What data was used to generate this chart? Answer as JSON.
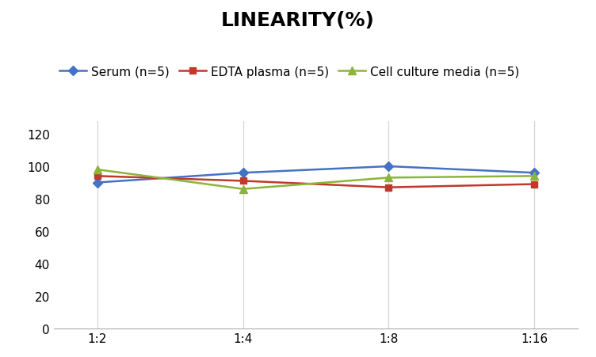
{
  "title": "LINEARITY(%)",
  "x_labels": [
    "1:2",
    "1:4",
    "1:8",
    "1:16"
  ],
  "x_positions": [
    0,
    1,
    2,
    3
  ],
  "series": [
    {
      "label": "Serum (n=5)",
      "values": [
        90,
        96,
        100,
        96
      ],
      "color": "#4472C4",
      "marker": "D",
      "marker_size": 6,
      "linewidth": 1.8
    },
    {
      "label": "EDTA plasma (n=5)",
      "values": [
        94,
        91,
        87,
        89
      ],
      "color": "#C0392B",
      "marker": "s",
      "marker_size": 6,
      "linewidth": 1.8
    },
    {
      "label": "Cell culture media (n=5)",
      "values": [
        98,
        86,
        93,
        94
      ],
      "color": "#8DB43A",
      "marker": "^",
      "marker_size": 7,
      "linewidth": 1.8
    }
  ],
  "ylim": [
    0,
    128
  ],
  "yticks": [
    0,
    20,
    40,
    60,
    80,
    100,
    120
  ],
  "grid_color": "#D0D0D0",
  "background_color": "#FFFFFF",
  "title_fontsize": 18,
  "legend_fontsize": 11,
  "tick_fontsize": 11
}
